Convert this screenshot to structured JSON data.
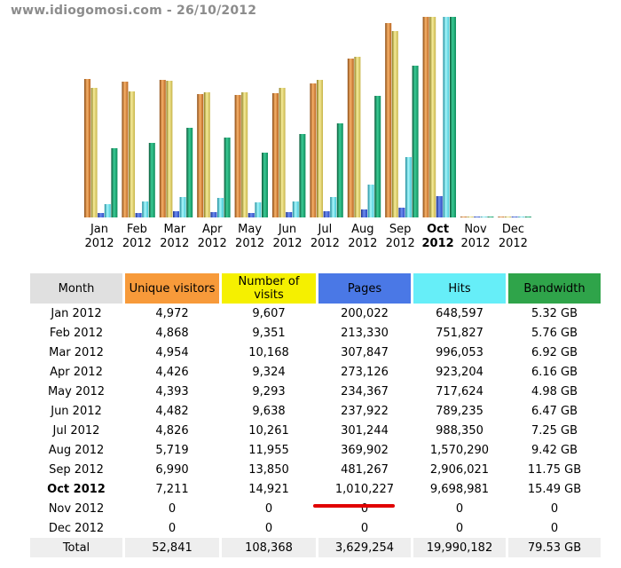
{
  "header": {
    "text": "www.idiogomosi.com - 26/10/2012"
  },
  "colors": {
    "unique": "#f79a3a",
    "visits": "#f5f000",
    "pages": "#4a78e6",
    "hits": "#66eef8",
    "bandwidth": "#2fa44a",
    "annotation_underline": "#e00000"
  },
  "chart_data": {
    "type": "bar",
    "categories": [
      "Jan 2012",
      "Feb 2012",
      "Mar 2012",
      "Apr 2012",
      "May 2012",
      "Jun 2012",
      "Jul 2012",
      "Aug 2012",
      "Sep 2012",
      "Oct 2012",
      "Nov 2012",
      "Dec 2012"
    ],
    "current_index": 9,
    "series": [
      {
        "key": "unique",
        "values": [
          4972,
          4868,
          4954,
          4426,
          4393,
          4482,
          4826,
          5719,
          6990,
          7211,
          0,
          0
        ],
        "max": 7211
      },
      {
        "key": "visits",
        "values": [
          9607,
          9351,
          10168,
          9324,
          9293,
          9638,
          10261,
          11955,
          13850,
          14921,
          0,
          0
        ],
        "max": 14921
      },
      {
        "key": "pages",
        "values": [
          200022,
          213330,
          307847,
          273126,
          234367,
          237922,
          301244,
          369902,
          481267,
          1010227,
          0,
          0
        ],
        "max": 9698981
      },
      {
        "key": "hits",
        "values": [
          648597,
          751827,
          996053,
          923204,
          717624,
          789235,
          988350,
          1570290,
          2906021,
          9698981,
          0,
          0
        ],
        "max": 9698981
      },
      {
        "key": "bandwidth",
        "values": [
          5.32,
          5.76,
          6.92,
          6.16,
          4.98,
          6.47,
          7.25,
          9.42,
          11.75,
          15.49,
          0,
          0
        ],
        "max": 15.49
      }
    ]
  },
  "table": {
    "headers": {
      "month": "Month",
      "unique": "Unique visitors",
      "visits": "Number of visits",
      "pages": "Pages",
      "hits": "Hits",
      "bandwidth": "Bandwidth"
    },
    "rows": [
      {
        "month": "Jan 2012",
        "unique": "4,972",
        "visits": "9,607",
        "pages": "200,022",
        "hits": "648,597",
        "bandwidth": "5.32 GB"
      },
      {
        "month": "Feb 2012",
        "unique": "4,868",
        "visits": "9,351",
        "pages": "213,330",
        "hits": "751,827",
        "bandwidth": "5.76 GB"
      },
      {
        "month": "Mar 2012",
        "unique": "4,954",
        "visits": "10,168",
        "pages": "307,847",
        "hits": "996,053",
        "bandwidth": "6.92 GB"
      },
      {
        "month": "Apr 2012",
        "unique": "4,426",
        "visits": "9,324",
        "pages": "273,126",
        "hits": "923,204",
        "bandwidth": "6.16 GB"
      },
      {
        "month": "May 2012",
        "unique": "4,393",
        "visits": "9,293",
        "pages": "234,367",
        "hits": "717,624",
        "bandwidth": "4.98 GB"
      },
      {
        "month": "Jun 2012",
        "unique": "4,482",
        "visits": "9,638",
        "pages": "237,922",
        "hits": "789,235",
        "bandwidth": "6.47 GB"
      },
      {
        "month": "Jul 2012",
        "unique": "4,826",
        "visits": "10,261",
        "pages": "301,244",
        "hits": "988,350",
        "bandwidth": "7.25 GB"
      },
      {
        "month": "Aug 2012",
        "unique": "5,719",
        "visits": "11,955",
        "pages": "369,902",
        "hits": "1,570,290",
        "bandwidth": "9.42 GB"
      },
      {
        "month": "Sep 2012",
        "unique": "6,990",
        "visits": "13,850",
        "pages": "481,267",
        "hits": "2,906,021",
        "bandwidth": "11.75 GB"
      },
      {
        "month": "Oct 2012",
        "unique": "7,211",
        "visits": "14,921",
        "pages": "1,010,227",
        "hits": "9,698,981",
        "bandwidth": "15.49 GB"
      },
      {
        "month": "Nov 2012",
        "unique": "0",
        "visits": "0",
        "pages": "0",
        "hits": "0",
        "bandwidth": "0"
      },
      {
        "month": "Dec 2012",
        "unique": "0",
        "visits": "0",
        "pages": "0",
        "hits": "0",
        "bandwidth": "0"
      }
    ],
    "total": {
      "month": "Total",
      "unique": "52,841",
      "visits": "108,368",
      "pages": "3,629,254",
      "hits": "19,990,182",
      "bandwidth": "79.53 GB"
    }
  }
}
